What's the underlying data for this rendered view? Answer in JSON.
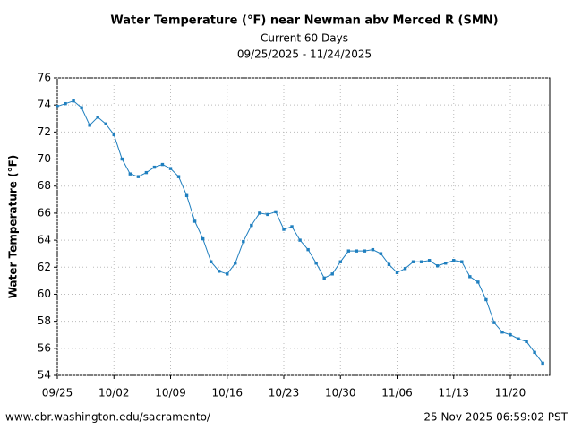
{
  "chart_data": {
    "type": "line",
    "title": "Water Temperature (°F) near Newman abv Merced R (SMN)",
    "subtitle": "Current 60 Days",
    "date_range": "09/25/2025 - 11/24/2025",
    "y_label": "Water Temperature (°F)",
    "categories": [
      "09/25",
      null,
      null,
      null,
      null,
      null,
      null,
      "10/02",
      null,
      null,
      null,
      null,
      null,
      null,
      "10/09",
      null,
      null,
      null,
      null,
      null,
      null,
      "10/16",
      null,
      null,
      null,
      null,
      null,
      null,
      "10/23",
      null,
      null,
      null,
      null,
      null,
      null,
      "10/30",
      null,
      null,
      null,
      null,
      null,
      null,
      "11/06",
      null,
      null,
      null,
      null,
      null,
      null,
      "11/13",
      null,
      null,
      null,
      null,
      null,
      null,
      "11/20",
      null,
      null,
      null,
      null
    ],
    "series": [
      {
        "name": "Water Temperature",
        "color": "#1f7fbf",
        "values": [
          73.9,
          74.1,
          74.3,
          73.8,
          72.5,
          73.1,
          72.6,
          71.8,
          70.0,
          68.9,
          68.7,
          69.0,
          69.4,
          69.6,
          69.3,
          68.7,
          67.3,
          65.4,
          64.1,
          62.4,
          61.7,
          61.5,
          62.3,
          63.9,
          65.1,
          66.0,
          65.9,
          66.1,
          64.8,
          65.0,
          64.0,
          63.3,
          62.3,
          61.2,
          61.5,
          62.4,
          63.2,
          63.2,
          63.2,
          63.3,
          63.0,
          62.2,
          61.6,
          61.9,
          62.4,
          62.4,
          62.5,
          62.1,
          62.3,
          62.5,
          62.4,
          61.3,
          60.9,
          59.6,
          57.9,
          57.2,
          57.0,
          56.7,
          56.5,
          55.7,
          54.9
        ]
      }
    ],
    "ylim": [
      54,
      76
    ],
    "yticks": [
      54,
      56,
      58,
      60,
      62,
      64,
      66,
      68,
      70,
      72,
      74,
      76
    ],
    "grid": true,
    "footer_left": "www.cbr.washington.edu/sacramento/",
    "footer_right": "25 Nov 2025 06:59:02 PST"
  }
}
